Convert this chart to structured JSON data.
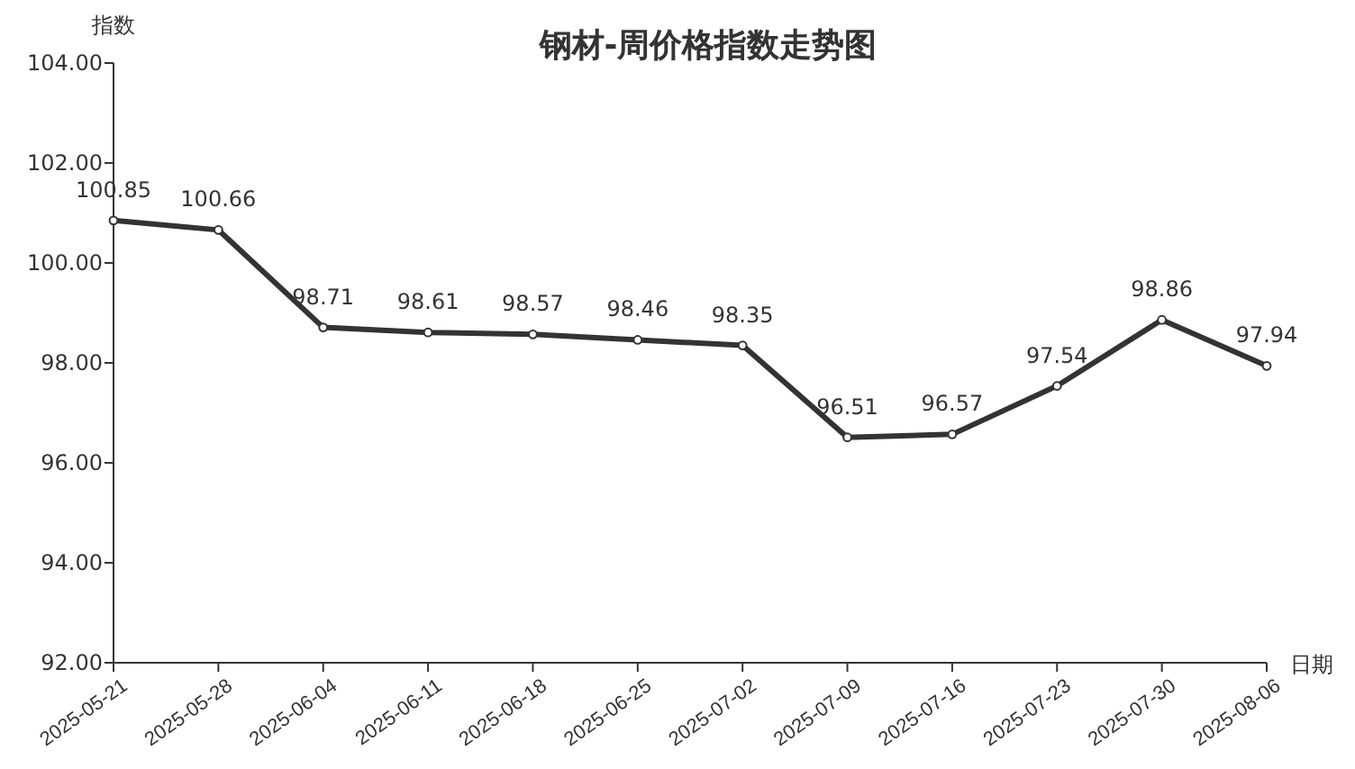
{
  "chart_data": {
    "type": "line",
    "title": "钢材-周价格指数走势图",
    "xlabel": "日期",
    "ylabel": "指数",
    "categories": [
      "2025-05-21",
      "2025-05-28",
      "2025-06-04",
      "2025-06-11",
      "2025-06-18",
      "2025-06-25",
      "2025-07-02",
      "2025-07-09",
      "2025-07-16",
      "2025-07-23",
      "2025-07-30",
      "2025-08-06"
    ],
    "series": [
      {
        "color": "#333333",
        "values": [
          100.85,
          100.66,
          98.71,
          98.61,
          98.57,
          98.46,
          98.35,
          96.51,
          96.57,
          97.54,
          98.86,
          97.94
        ]
      }
    ],
    "ylim": [
      92,
      104
    ],
    "yticks": [
      {
        "value": 92,
        "label": "92.00"
      },
      {
        "value": 94,
        "label": "94.00"
      },
      {
        "value": 96,
        "label": "96.00"
      },
      {
        "value": 98,
        "label": "98.00"
      },
      {
        "value": 100,
        "label": "100.00"
      },
      {
        "value": 102,
        "label": "102.00"
      },
      {
        "value": 104,
        "label": "104.00"
      }
    ],
    "data_labels": true,
    "marker": "circle",
    "line_style": "solid",
    "grid": false
  }
}
